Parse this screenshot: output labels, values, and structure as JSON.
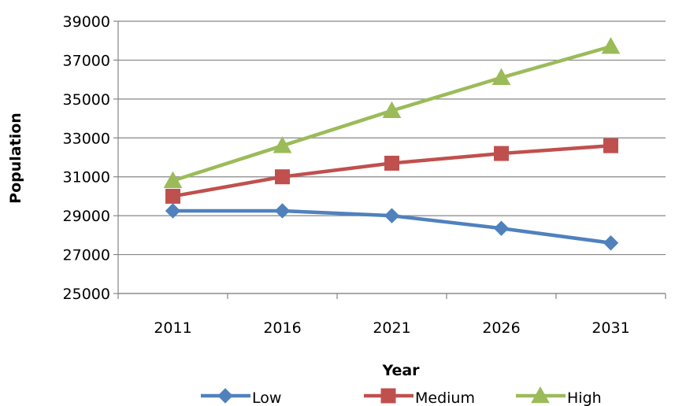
{
  "chart_data": {
    "type": "line",
    "categories": [
      "2011",
      "2016",
      "2021",
      "2026",
      "2031"
    ],
    "series": [
      {
        "name": "Low",
        "values": [
          29250,
          29250,
          29000,
          28350,
          27600
        ],
        "color": "#4F81BD",
        "marker": "diamond"
      },
      {
        "name": "Medium",
        "values": [
          30000,
          31000,
          31700,
          32200,
          32600
        ],
        "color": "#C0504D",
        "marker": "square"
      },
      {
        "name": "High",
        "values": [
          30800,
          32600,
          34400,
          36100,
          37700
        ],
        "color": "#9BBB59",
        "marker": "triangle"
      }
    ],
    "xlabel": "Year",
    "ylabel": "Population",
    "ylim": [
      25000,
      39000
    ],
    "yticks": [
      "25000",
      "27000",
      "29000",
      "31000",
      "33000",
      "35000",
      "37000",
      "39000"
    ],
    "grid": true,
    "legend": "bottom"
  }
}
